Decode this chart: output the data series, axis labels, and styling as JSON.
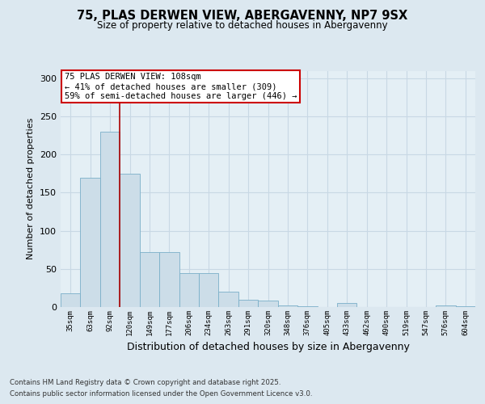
{
  "title1": "75, PLAS DERWEN VIEW, ABERGAVENNY, NP7 9SX",
  "title2": "Size of property relative to detached houses in Abergavenny",
  "xlabel": "Distribution of detached houses by size in Abergavenny",
  "ylabel": "Number of detached properties",
  "categories": [
    "35sqm",
    "63sqm",
    "92sqm",
    "120sqm",
    "149sqm",
    "177sqm",
    "206sqm",
    "234sqm",
    "263sqm",
    "291sqm",
    "320sqm",
    "348sqm",
    "376sqm",
    "405sqm",
    "433sqm",
    "462sqm",
    "490sqm",
    "519sqm",
    "547sqm",
    "576sqm",
    "604sqm"
  ],
  "values": [
    18,
    170,
    230,
    175,
    72,
    72,
    44,
    44,
    20,
    10,
    8,
    2,
    1,
    0,
    5,
    0,
    0,
    0,
    0,
    2,
    1
  ],
  "bar_color": "#ccdde8",
  "bar_edge_color": "#7aafc8",
  "vline_color": "#aa0000",
  "vline_pos": 2.5,
  "annotation_text": "75 PLAS DERWEN VIEW: 108sqm\n← 41% of detached houses are smaller (309)\n59% of semi-detached houses are larger (446) →",
  "annotation_box_color": "#ffffff",
  "annotation_box_edge": "#cc0000",
  "footnote1": "Contains HM Land Registry data © Crown copyright and database right 2025.",
  "footnote2": "Contains public sector information licensed under the Open Government Licence v3.0.",
  "ylim": [
    0,
    310
  ],
  "yticks": [
    0,
    50,
    100,
    150,
    200,
    250,
    300
  ],
  "background_color": "#dce8f0",
  "plot_background": "#e4eff5",
  "grid_color": "#c8d8e4"
}
